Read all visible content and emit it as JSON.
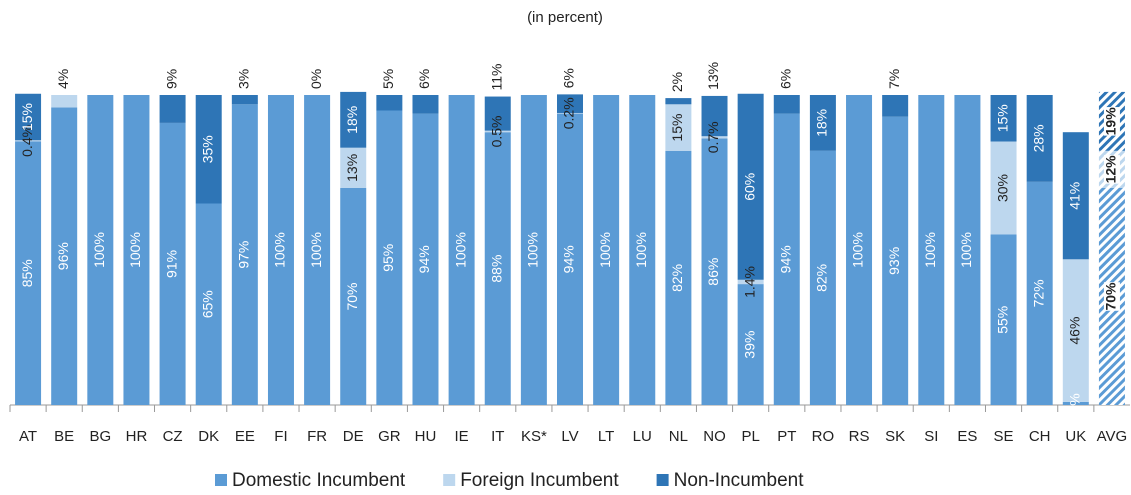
{
  "chart_data": {
    "type": "stacked_bar",
    "subtitle": "(in percent)",
    "categories": [
      "AT",
      "BE",
      "BG",
      "HR",
      "CZ",
      "DK",
      "EE",
      "FI",
      "FR",
      "DE",
      "GR",
      "HU",
      "IE",
      "IT",
      "KS*",
      "LV",
      "LT",
      "LU",
      "NL",
      "NO",
      "PL",
      "PT",
      "RO",
      "RS",
      "SK",
      "SI",
      "ES",
      "SE",
      "CH",
      "UK",
      "AVG"
    ],
    "ylim": [
      0,
      100
    ],
    "legend": "bottom",
    "series": [
      {
        "name": "Domestic Incumbent",
        "color": "#5b9bd5",
        "values": [
          85,
          96,
          100,
          100,
          91,
          65,
          97,
          100,
          100,
          70,
          95,
          94,
          100,
          88,
          100,
          94,
          100,
          100,
          82,
          86,
          39,
          94,
          82,
          100,
          93,
          100,
          100,
          55,
          72,
          1,
          70
        ],
        "value_labels": [
          "85%",
          "96%",
          "100%",
          "100%",
          "91%",
          "65%",
          "97%",
          "100%",
          "100%",
          "70%",
          "95%",
          "94%",
          "100%",
          "88%",
          "100%",
          "94%",
          "100%",
          "100%",
          "82%",
          "86%",
          "39%",
          "94%",
          "82%",
          "100%",
          "93%",
          "100%",
          "100%",
          "55%",
          "72%",
          "1%",
          "70%"
        ]
      },
      {
        "name": "Foreign Incumbent",
        "color": "#bdd7ee",
        "values": [
          0.4,
          4,
          0,
          0,
          0,
          0,
          0,
          0,
          0,
          13,
          0,
          0,
          0,
          0.5,
          0,
          0.2,
          0,
          0,
          15,
          0.7,
          1.4,
          0,
          0,
          0,
          0,
          0,
          0,
          30,
          0,
          46,
          12
        ],
        "value_labels": [
          "0.4%",
          "4%",
          null,
          null,
          null,
          null,
          null,
          null,
          null,
          "13%",
          null,
          null,
          null,
          "0.5%",
          null,
          "0.2%",
          null,
          null,
          "15%",
          "0.7%",
          "1.4%",
          null,
          null,
          null,
          null,
          null,
          null,
          "30%",
          null,
          "46%",
          "12%"
        ]
      },
      {
        "name": "Non-Incumbent",
        "color": "#2e75b6",
        "values": [
          15,
          0,
          0,
          0,
          9,
          35,
          3,
          0,
          0,
          18,
          5,
          6,
          0,
          11,
          0,
          6,
          0,
          0,
          2,
          13,
          60,
          6,
          18,
          0,
          7,
          0,
          0,
          15,
          28,
          41,
          19
        ],
        "value_labels": [
          "15%",
          null,
          null,
          null,
          "9%",
          "35%",
          "3%",
          null,
          "0%",
          "18%",
          "5%",
          "6%",
          null,
          "11%",
          null,
          "6%",
          null,
          null,
          "2%",
          "13%",
          "60%",
          "6%",
          "18%",
          null,
          "7%",
          null,
          null,
          "15%",
          "28%",
          "41%",
          "19%"
        ]
      }
    ]
  }
}
